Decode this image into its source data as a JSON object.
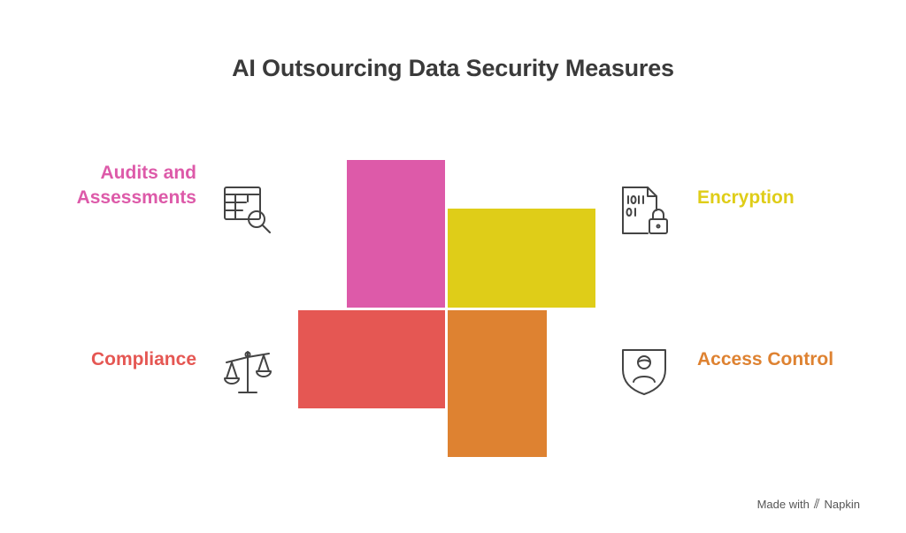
{
  "title": "AI Outsourcing Data Security Measures",
  "items": [
    {
      "label_line1": "Audits and",
      "label_line2": "Assessments",
      "color": "#dd5aa9",
      "icon": "table-search-icon"
    },
    {
      "label": "Encryption",
      "color": "#dfcd18",
      "icon": "encrypted-file-lock-icon"
    },
    {
      "label": "Compliance",
      "color": "#e55753",
      "icon": "balance-scale-icon"
    },
    {
      "label": "Access Control",
      "color": "#de8231",
      "icon": "user-shield-icon"
    }
  ],
  "footer": {
    "made_with": "Made with",
    "brand": "Napkin"
  }
}
